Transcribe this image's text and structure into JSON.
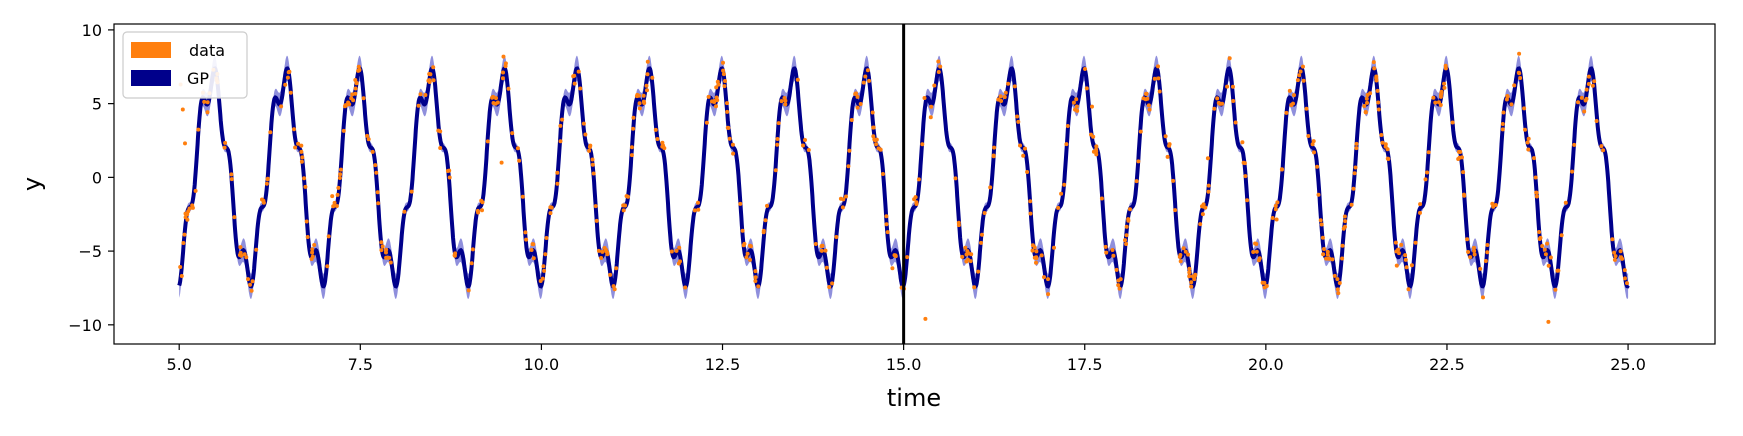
{
  "chart_data": {
    "type": "line",
    "xlabel": "time",
    "ylabel": "y",
    "xlim": [
      4.1,
      26.2
    ],
    "ylim": [
      -11.3,
      10.4
    ],
    "x_ticks": [
      5.0,
      7.5,
      10.0,
      12.5,
      15.0,
      17.5,
      20.0,
      22.5,
      25.0
    ],
    "x_tick_labels": [
      "5.0",
      "7.5",
      "10.0",
      "12.5",
      "15.0",
      "17.5",
      "20.0",
      "22.5",
      "25.0"
    ],
    "y_ticks": [
      -10,
      -5,
      0,
      5,
      10
    ],
    "y_tick_labels": [
      "−10",
      "−5",
      "0",
      "5",
      "10"
    ],
    "grid": false,
    "legend_position": "top-left",
    "vertical_line": {
      "x": 15.0,
      "color": "#000000"
    },
    "series": [
      {
        "name": "data",
        "kind": "scatter",
        "color": "#ff7f0e",
        "x_range": [
          5.0,
          25.0
        ],
        "count": 700,
        "noise_sd": 0.35,
        "outliers": [
          {
            "x": 5.02,
            "y": 6.3
          },
          {
            "x": 5.05,
            "y": 4.6
          },
          {
            "x": 5.08,
            "y": 2.3
          },
          {
            "x": 17.6,
            "y": 4.8
          },
          {
            "x": 15.3,
            "y": -9.6
          },
          {
            "x": 23.9,
            "y": -9.8
          },
          {
            "x": 9.45,
            "y": 1.0
          },
          {
            "x": 19.2,
            "y": 1.3
          }
        ]
      },
      {
        "name": "GP",
        "kind": "line",
        "color": "#00008b",
        "x_range": [
          5.0,
          25.0
        ],
        "band_color": "#6a6ad0",
        "band_halfwidth_peaks": 0.9,
        "band_halfwidth_mid": 0.25
      }
    ],
    "signal": {
      "components": [
        {
          "amplitude": 6.5,
          "period": 1.0,
          "phase_at_x": 5.45
        },
        {
          "amplitude": 1.15,
          "period": 0.2,
          "phase_at_x": 5.5
        }
      ]
    }
  }
}
